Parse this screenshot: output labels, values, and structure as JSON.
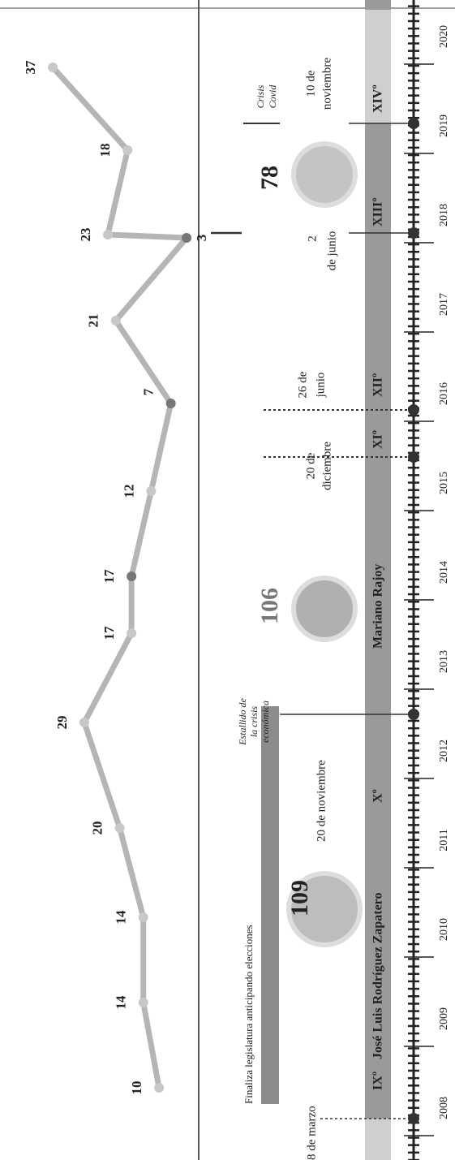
{
  "line": {
    "values": [
      10,
      14,
      14,
      20,
      29,
      17,
      17,
      12,
      7,
      21,
      3,
      23,
      18,
      37
    ]
  },
  "timeline": {
    "years": [
      2008,
      2009,
      2010,
      2011,
      2012,
      2013,
      2014,
      2015,
      2016,
      2017,
      2018,
      2019,
      2020
    ],
    "legislatures": [
      "IXº",
      "Xº",
      "XIº",
      "XIIº",
      "XIIIº",
      "XIVº"
    ],
    "leaders": [
      "José Luis Rodríguez Zapatero",
      "Mariano Rajoy"
    ]
  },
  "seats": [
    109,
    106,
    78
  ],
  "annotations": [
    "8 de marzo",
    "Finaliza legislatura anticipando elecciones",
    "20 de noviembre",
    [
      "Estallido de",
      "la crisis",
      "económica"
    ],
    [
      "20 de",
      "diciembre"
    ],
    [
      "26 de",
      "junio"
    ],
    [
      "2",
      "de junio"
    ],
    [
      "10 de",
      "noviembre"
    ],
    [
      "Crisis",
      "Covid"
    ]
  ]
}
